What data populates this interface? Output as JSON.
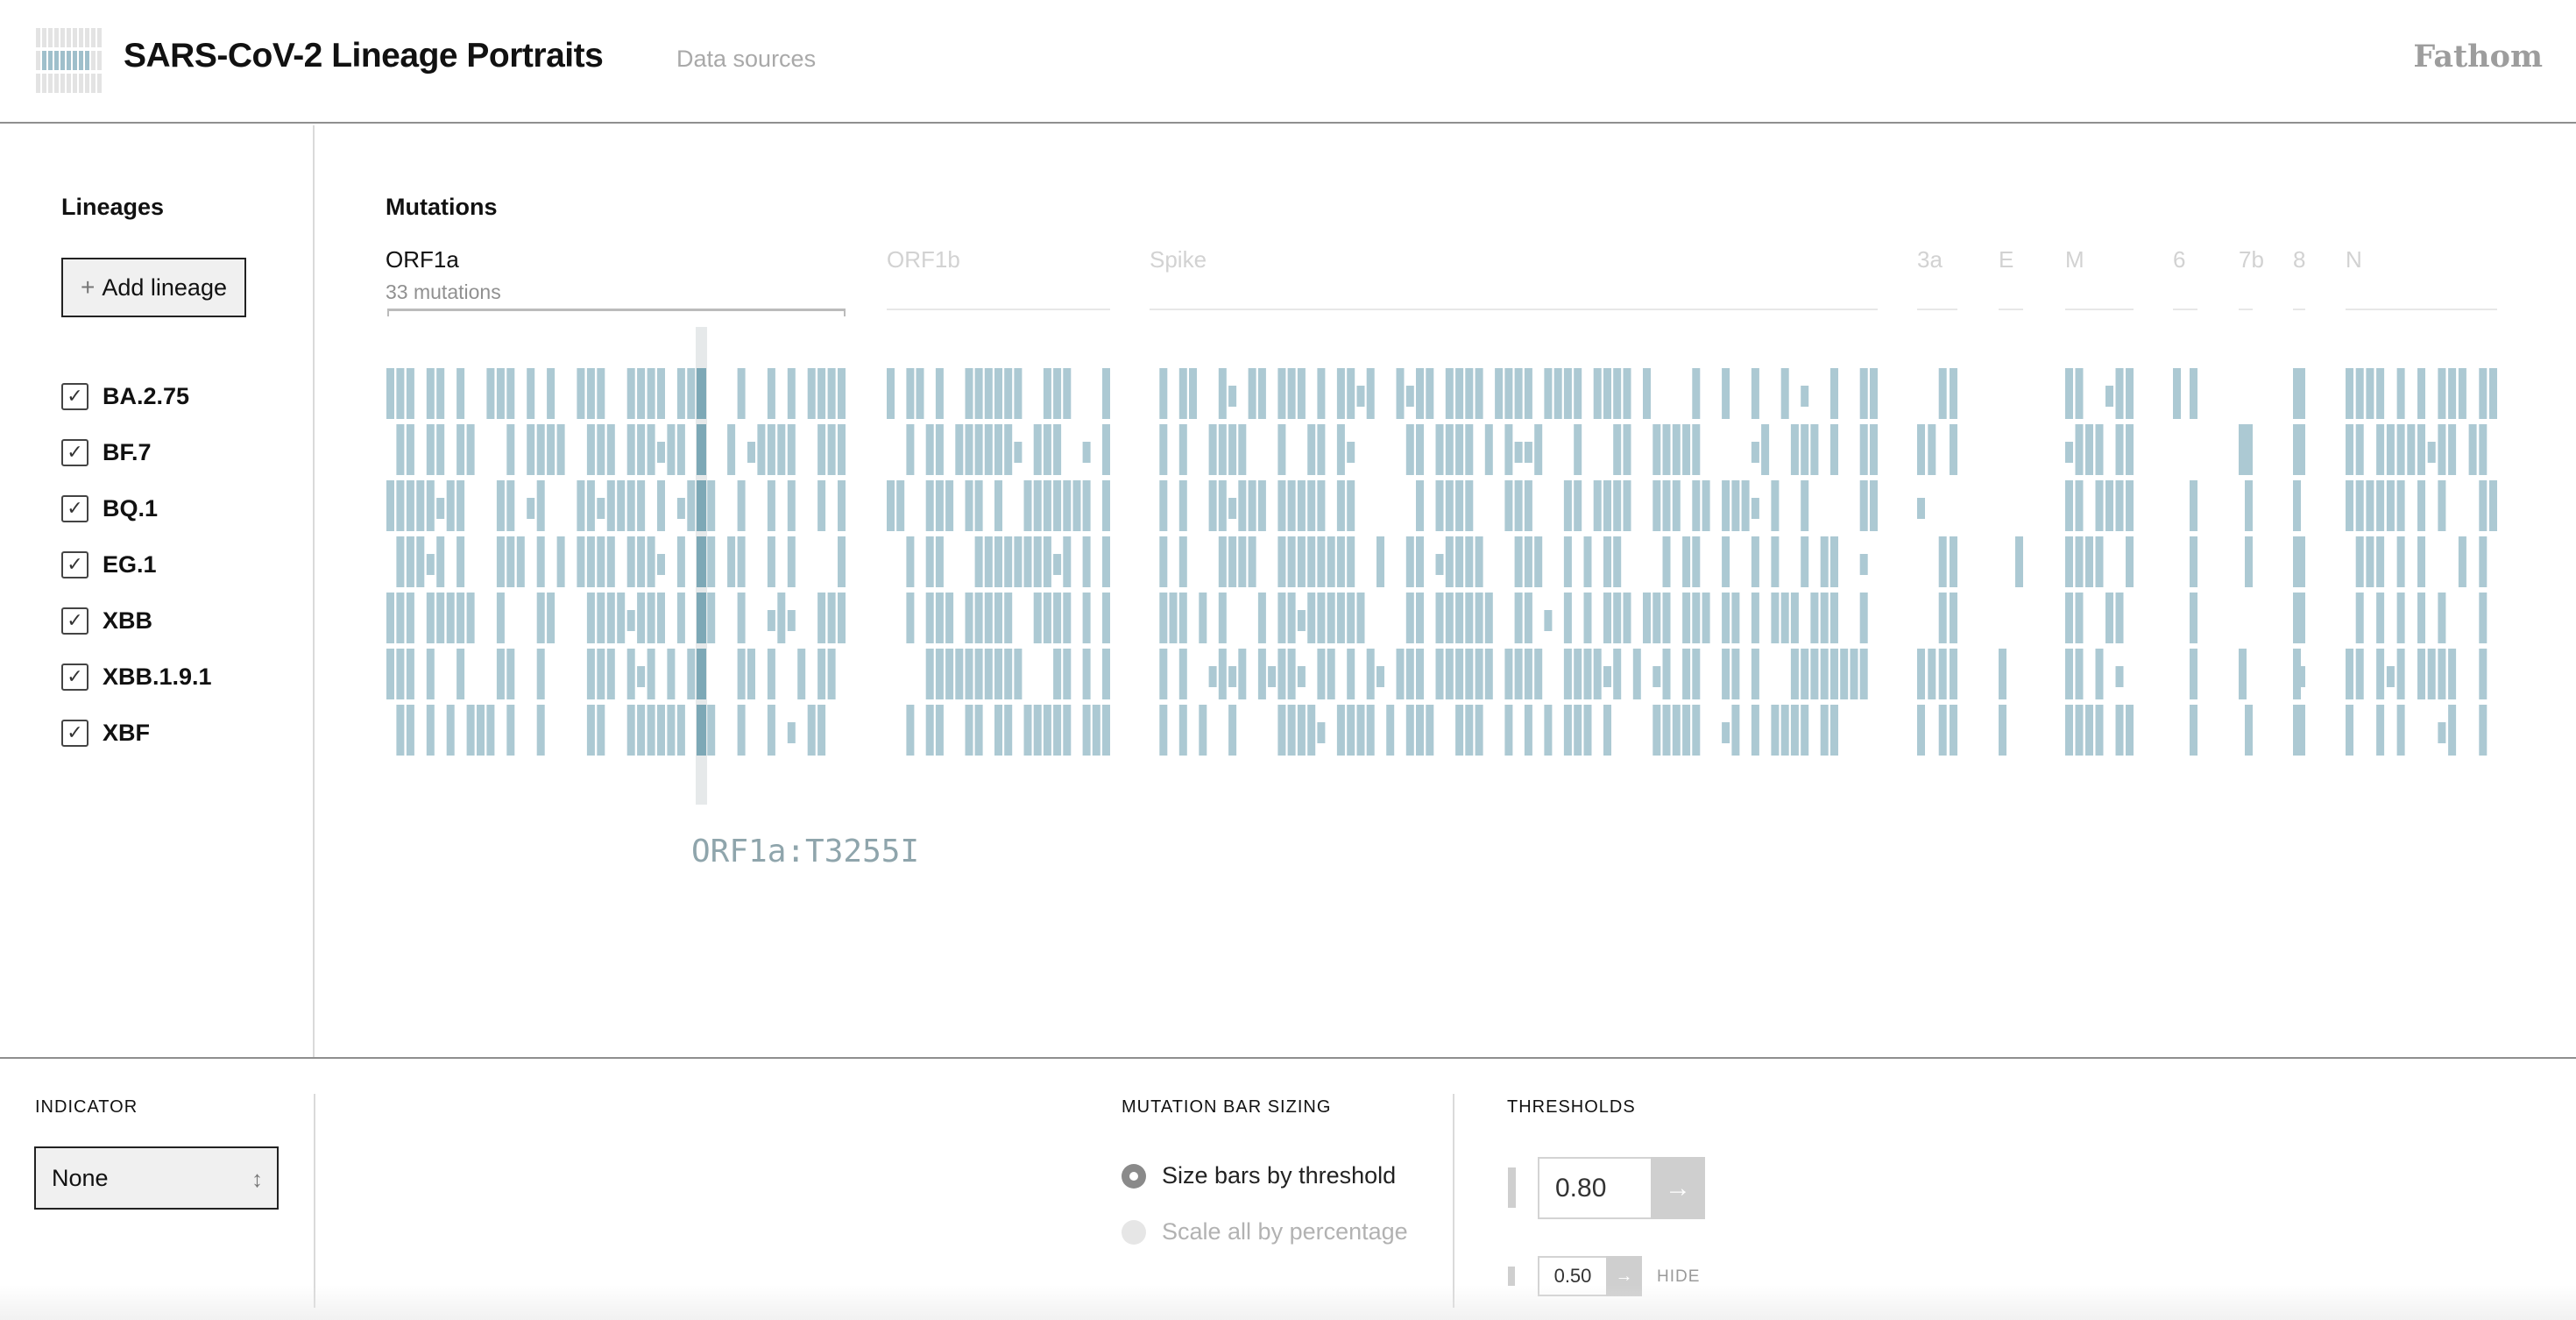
{
  "header": {
    "title": "SARS-CoV-2 Lineage Portraits",
    "data_sources": "Data sources",
    "brand": "Fathom"
  },
  "sidebar": {
    "heading": "Lineages",
    "add_button": "Add lineage",
    "lineages": [
      {
        "name": "BA.2.75",
        "checked": true
      },
      {
        "name": "BF.7",
        "checked": true
      },
      {
        "name": "BQ.1",
        "checked": true
      },
      {
        "name": "EG.1",
        "checked": true
      },
      {
        "name": "XBB",
        "checked": true
      },
      {
        "name": "XBB.1.9.1",
        "checked": true
      },
      {
        "name": "XBF",
        "checked": true
      }
    ]
  },
  "main": {
    "heading": "Mutations",
    "genes": [
      {
        "name": "ORF1a",
        "active": true,
        "sub": "33 mutations"
      },
      {
        "name": "ORF1b",
        "active": false
      },
      {
        "name": "Spike",
        "active": false
      },
      {
        "name": "3a",
        "active": false
      },
      {
        "name": "E",
        "active": false
      },
      {
        "name": "M",
        "active": false
      },
      {
        "name": "6",
        "active": false
      },
      {
        "name": "7b",
        "active": false
      },
      {
        "name": "8",
        "active": false
      },
      {
        "name": "N",
        "active": false
      }
    ],
    "hover_mutation": "ORF1a:T3255I",
    "colors": {
      "bar": "#acc9d3",
      "bar_highlight": "#7da8b6",
      "highlight_column": "#e6e9ea"
    }
  },
  "footer": {
    "indicator": {
      "heading": "INDICATOR",
      "value": "None"
    },
    "sizing": {
      "heading": "MUTATION BAR SIZING",
      "options": [
        {
          "label": "Size bars by threshold",
          "selected": true
        },
        {
          "label": "Scale all by percentage",
          "selected": false
        }
      ]
    },
    "thresholds": {
      "heading": "THRESHOLDS",
      "upper": "0.80",
      "lower": "0.50",
      "hide_label": "HIDE",
      "go_icon": "arrow-right-icon"
    }
  }
}
